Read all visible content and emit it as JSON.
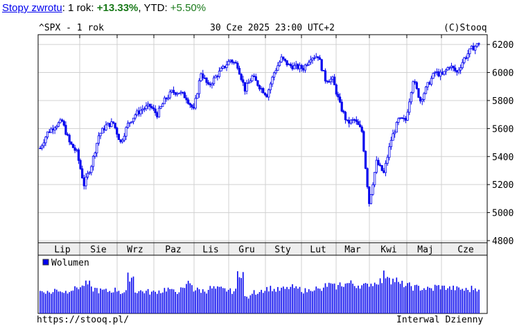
{
  "header": {
    "link": "Stopy zwrotu",
    "sep1": ": 1 rok: ",
    "one_year": "+13.33%",
    "sep2": ", YTD: ",
    "ytd": "+5.50%"
  },
  "chart_title": "^SPX - 1 rok",
  "chart_date": "30 Cze 2025 23:00 UTC+2",
  "copyright": "(C)Stooq",
  "footer_url": "https://stooq.pl/",
  "footer_interval": "Interwal Dzienny",
  "colors": {
    "series": "#0000ee",
    "grid": "#d0d0d0",
    "band": "#eeeeee"
  },
  "chart_data": [
    {
      "type": "ohlc",
      "ylim": [
        4785,
        6270
      ],
      "yticks": [
        4800,
        5000,
        5200,
        5400,
        5600,
        5800,
        6000,
        6200
      ],
      "xtick_labels": [
        "Lip",
        "Sie",
        "Wrz",
        "Paz",
        "Lis",
        "Gru",
        "Sty",
        "Lut",
        "Mar",
        "Kwi",
        "Maj",
        "Cze"
      ],
      "grid": true,
      "series": [
        {
          "values": [
            5460,
            5570,
            5620,
            5650,
            5500,
            5430,
            5200,
            5340,
            5550,
            5620,
            5640,
            5500,
            5630,
            5700,
            5740,
            5760,
            5700,
            5800,
            5860,
            5860,
            5820,
            5730,
            6000,
            5900,
            5970,
            6030,
            6090,
            6050,
            5880,
            5970,
            5900,
            5840,
            6000,
            6100,
            6050,
            6040,
            6030,
            6110,
            6120,
            5950,
            5950,
            5770,
            5640,
            5660,
            5580,
            5070,
            5360,
            5280,
            5520,
            5660,
            5660,
            5950,
            5800,
            5910,
            6000,
            5980,
            6050,
            6000,
            6100,
            6170,
            6205
          ]
        }
      ]
    },
    {
      "type": "bar",
      "legend": "Wolumen",
      "series": [
        {
          "values": [
            55,
            52,
            58,
            54,
            60,
            65,
            72,
            60,
            56,
            55,
            58,
            52,
            90,
            55,
            54,
            52,
            55,
            60,
            54,
            58,
            75,
            58,
            56,
            62,
            60,
            58,
            55,
            100,
            40,
            52,
            58,
            62,
            58,
            60,
            64,
            60,
            56,
            62,
            58,
            70,
            66,
            72,
            74,
            70,
            68,
            74,
            80,
            95,
            82,
            72,
            68,
            64,
            62,
            60,
            66,
            64,
            62,
            60,
            58,
            62,
            64
          ]
        }
      ]
    }
  ]
}
